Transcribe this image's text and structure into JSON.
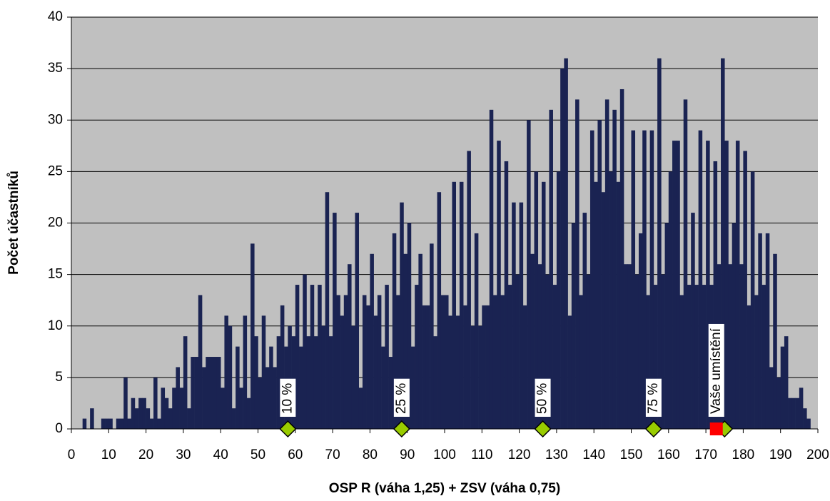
{
  "chart_data": {
    "type": "histogram",
    "x_label": "OSP R (váha 1,25) + ZSV (váha 0,75)",
    "y_label": "Počet účastníků",
    "bins": [
      0,
      1,
      2,
      3,
      4,
      5,
      6,
      7,
      8,
      9,
      10,
      11,
      12,
      13,
      14,
      15,
      16,
      17,
      18,
      19,
      20,
      21,
      22,
      23,
      24,
      25,
      26,
      27,
      28,
      29,
      30,
      31,
      32,
      33,
      34,
      35,
      36,
      37,
      38,
      39,
      40,
      41,
      42,
      43,
      44,
      45,
      46,
      47,
      48,
      49,
      50,
      51,
      52,
      53,
      54,
      55,
      56,
      57,
      58,
      59,
      60,
      61,
      62,
      63,
      64,
      65,
      66,
      67,
      68,
      69,
      70,
      71,
      72,
      73,
      74,
      75,
      76,
      77,
      78,
      79,
      80,
      81,
      82,
      83,
      84,
      85,
      86,
      87,
      88,
      89,
      90,
      91,
      92,
      93,
      94,
      95,
      96,
      97,
      98,
      99,
      100,
      101,
      102,
      103,
      104,
      105,
      106,
      107,
      108,
      109,
      110,
      111,
      112,
      113,
      114,
      115,
      116,
      117,
      118,
      119,
      120,
      121,
      122,
      123,
      124,
      125,
      126,
      127,
      128,
      129,
      130,
      131,
      132,
      133,
      134,
      135,
      136,
      137,
      138,
      139,
      140,
      141,
      142,
      143,
      144,
      145,
      146,
      147,
      148,
      149,
      150,
      151,
      152,
      153,
      154,
      155,
      156,
      157,
      158,
      159,
      160,
      161,
      162,
      163,
      164,
      165,
      166,
      167,
      168,
      169,
      170,
      171,
      172,
      173,
      174,
      175,
      176,
      177,
      178,
      179,
      180,
      181,
      182,
      183,
      184,
      185,
      186,
      187,
      188,
      189,
      190,
      191,
      192,
      193,
      194,
      195,
      196,
      197,
      198
    ],
    "values": [
      0,
      0,
      0,
      1,
      0,
      2,
      0,
      0,
      1,
      1,
      1,
      0,
      1,
      1,
      5,
      1,
      3,
      2,
      3,
      3,
      2,
      1,
      5,
      1,
      4,
      3,
      2,
      4,
      6,
      4,
      9,
      2,
      7,
      7,
      13,
      6,
      7,
      7,
      7,
      7,
      4,
      11,
      10,
      2,
      8,
      4,
      11,
      3,
      18,
      9,
      5,
      11,
      6,
      8,
      6,
      9,
      12,
      8,
      10,
      9,
      14,
      8,
      15,
      9,
      14,
      9,
      14,
      10,
      23,
      9,
      21,
      13,
      11,
      13,
      16,
      10,
      21,
      4,
      13,
      12,
      17,
      11,
      13,
      8,
      14,
      7,
      19,
      13,
      22,
      17,
      20,
      8,
      14,
      17,
      12,
      12,
      18,
      9,
      23,
      13,
      13,
      11,
      24,
      11,
      24,
      12,
      27,
      10,
      19,
      10,
      12,
      12,
      31,
      13,
      28,
      13,
      26,
      14,
      22,
      15,
      22,
      12,
      30,
      17,
      25,
      16,
      24,
      15,
      31,
      14,
      25,
      35,
      36,
      11,
      20,
      32,
      13,
      21,
      15,
      29,
      24,
      30,
      23,
      32,
      25,
      31,
      24,
      33,
      16,
      16,
      29,
      15,
      19,
      29,
      13,
      29,
      14,
      36,
      15,
      20,
      25,
      28,
      28,
      13,
      32,
      14,
      21,
      14,
      29,
      14,
      28,
      14,
      26,
      16,
      36,
      28,
      16,
      20,
      28,
      16,
      27,
      12,
      25,
      13,
      19,
      14,
      19,
      6,
      17,
      5,
      8,
      9,
      3,
      3,
      3,
      4,
      2,
      1
    ],
    "color": "#1a2352",
    "xlim": [
      0,
      200
    ],
    "xticks": [
      0,
      10,
      20,
      30,
      40,
      50,
      60,
      70,
      80,
      90,
      100,
      110,
      120,
      130,
      140,
      150,
      160,
      170,
      180,
      190,
      200
    ],
    "ylim": [
      0,
      40
    ],
    "yticks": [
      0,
      5,
      10,
      15,
      20,
      25,
      30,
      35,
      40
    ],
    "grid": true,
    "markers": [
      {
        "label": "10 %",
        "x": 58,
        "shape": "diamond",
        "color": "#99cc00"
      },
      {
        "label": "25 %",
        "x": 88.5,
        "shape": "diamond",
        "color": "#99cc00"
      },
      {
        "label": "50 %",
        "x": 126.3,
        "shape": "diamond",
        "color": "#99cc00"
      },
      {
        "label": "75 %",
        "x": 156,
        "shape": "diamond",
        "color": "#99cc00"
      },
      {
        "label": null,
        "x": 175,
        "shape": "diamond",
        "color": "#99cc00"
      },
      {
        "label": "Vaše umístění",
        "x": 172.8,
        "shape": "square",
        "color": "#ff0000"
      }
    ]
  }
}
